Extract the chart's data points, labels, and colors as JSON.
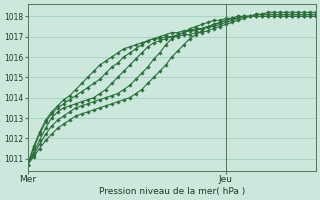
{
  "bg_color": "#cce8dc",
  "grid_color": "#99ccbb",
  "line_color": "#2d6e3e",
  "marker_color": "#2d6e3e",
  "ylabel_ticks": [
    1011,
    1012,
    1013,
    1014,
    1015,
    1016,
    1017,
    1018
  ],
  "ylim": [
    1010.4,
    1018.6
  ],
  "xlim": [
    0,
    48
  ],
  "title": "Pression niveau de la mer( hPa )",
  "x_ticks": [
    0,
    33,
    48
  ],
  "x_labels": [
    "Mer",
    "Jeu",
    ""
  ],
  "vline_x": 33,
  "series": [
    [
      1010.7,
      1011.1,
      1011.5,
      1011.9,
      1012.2,
      1012.5,
      1012.7,
      1012.9,
      1013.1,
      1013.2,
      1013.3,
      1013.4,
      1013.5,
      1013.6,
      1013.7,
      1013.8,
      1013.9,
      1014.0,
      1014.2,
      1014.4,
      1014.7,
      1015.0,
      1015.3,
      1015.6,
      1016.0,
      1016.3,
      1016.6,
      1016.9,
      1017.1,
      1017.3,
      1017.5,
      1017.6,
      1017.7,
      1017.8,
      1017.9,
      1017.9,
      1018.0,
      1018.0,
      1018.1,
      1018.1,
      1018.2,
      1018.2,
      1018.2,
      1018.2,
      1018.2,
      1018.2,
      1018.2,
      1018.2,
      1018.2
    ],
    [
      1010.7,
      1011.2,
      1011.7,
      1012.2,
      1012.6,
      1012.9,
      1013.1,
      1013.3,
      1013.5,
      1013.6,
      1013.7,
      1013.8,
      1013.9,
      1014.0,
      1014.1,
      1014.2,
      1014.4,
      1014.6,
      1014.9,
      1015.2,
      1015.5,
      1015.9,
      1016.2,
      1016.6,
      1016.9,
      1017.1,
      1017.2,
      1017.4,
      1017.5,
      1017.6,
      1017.7,
      1017.8,
      1017.8,
      1017.9,
      1017.9,
      1018.0,
      1018.0,
      1018.0,
      1018.1,
      1018.1,
      1018.1,
      1018.1,
      1018.1,
      1018.1,
      1018.1,
      1018.1,
      1018.1,
      1018.1,
      1018.1
    ],
    [
      1010.7,
      1011.3,
      1011.9,
      1012.5,
      1013.0,
      1013.3,
      1013.5,
      1013.6,
      1013.7,
      1013.8,
      1013.9,
      1014.0,
      1014.2,
      1014.4,
      1014.7,
      1015.0,
      1015.3,
      1015.6,
      1015.9,
      1016.2,
      1016.5,
      1016.7,
      1016.8,
      1016.9,
      1017.0,
      1017.1,
      1017.2,
      1017.3,
      1017.3,
      1017.4,
      1017.5,
      1017.6,
      1017.7,
      1017.8,
      1017.9,
      1018.0,
      1018.0,
      1018.0,
      1018.0,
      1018.0,
      1018.0,
      1018.0,
      1018.0,
      1018.0,
      1018.0,
      1018.0,
      1018.0,
      1018.0,
      1018.0
    ],
    [
      1010.7,
      1011.5,
      1012.2,
      1012.8,
      1013.2,
      1013.5,
      1013.7,
      1013.9,
      1014.1,
      1014.3,
      1014.5,
      1014.7,
      1014.9,
      1015.2,
      1015.5,
      1015.7,
      1016.0,
      1016.2,
      1016.4,
      1016.6,
      1016.8,
      1016.9,
      1017.0,
      1017.1,
      1017.2,
      1017.2,
      1017.3,
      1017.3,
      1017.4,
      1017.4,
      1017.5,
      1017.5,
      1017.6,
      1017.7,
      1017.8,
      1017.9,
      1018.0,
      1018.0,
      1018.0,
      1018.0,
      1018.0,
      1018.0,
      1018.0,
      1018.0,
      1018.0,
      1018.0,
      1018.0,
      1018.0,
      1018.0
    ],
    [
      1010.7,
      1011.6,
      1012.3,
      1012.9,
      1013.3,
      1013.6,
      1013.9,
      1014.1,
      1014.4,
      1014.7,
      1015.0,
      1015.3,
      1015.6,
      1015.8,
      1016.0,
      1016.2,
      1016.4,
      1016.5,
      1016.6,
      1016.7,
      1016.8,
      1016.9,
      1016.9,
      1017.0,
      1017.0,
      1017.0,
      1017.1,
      1017.1,
      1017.2,
      1017.2,
      1017.3,
      1017.4,
      1017.5,
      1017.6,
      1017.7,
      1017.8,
      1017.9,
      1018.0,
      1018.0,
      1018.0,
      1018.0,
      1018.0,
      1018.0,
      1018.0,
      1018.0,
      1018.0,
      1018.0,
      1018.0,
      1018.0
    ]
  ]
}
